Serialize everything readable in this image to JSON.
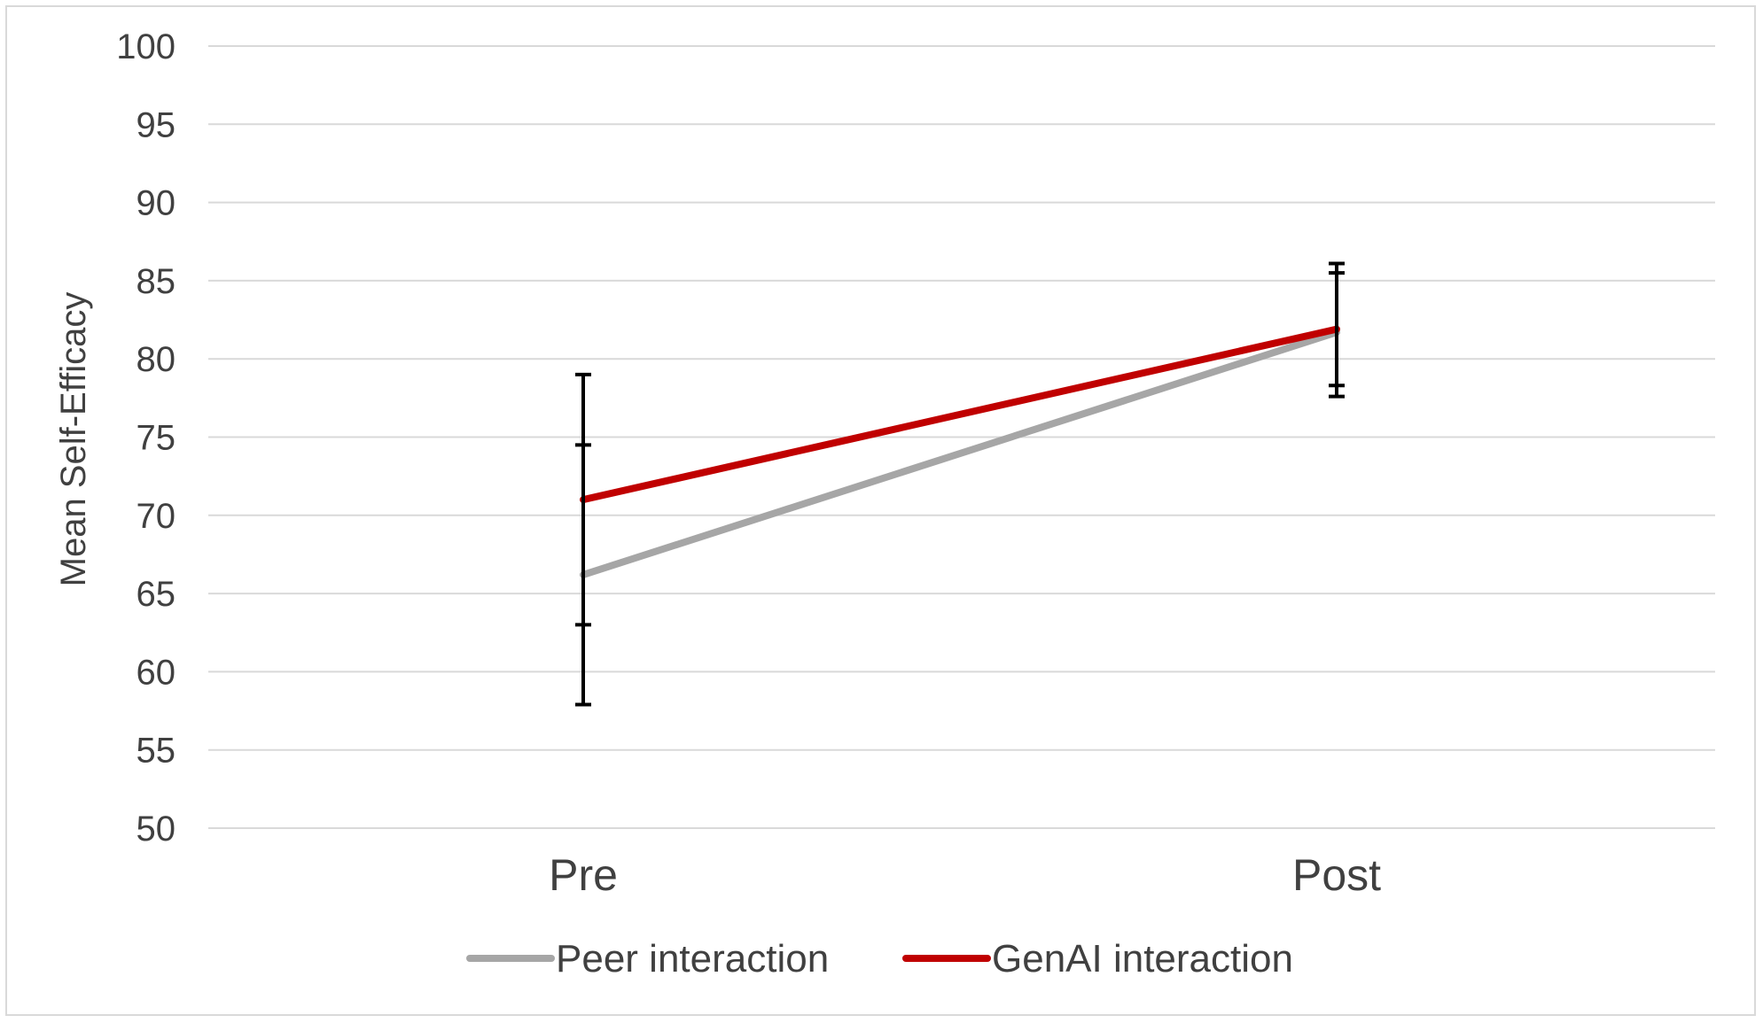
{
  "chart_data": {
    "type": "line",
    "title": "",
    "xlabel": "",
    "ylabel": "Mean Self-Efficacy",
    "categories": [
      "Pre",
      "Post"
    ],
    "ylim": [
      50,
      100
    ],
    "yticks": [
      50,
      55,
      60,
      65,
      70,
      75,
      80,
      85,
      90,
      95,
      100
    ],
    "grid": true,
    "legend_position": "bottom",
    "series": [
      {
        "name": "Peer interaction",
        "color": "#a6a6a6",
        "values": [
          66.2,
          81.7
        ],
        "error_low": [
          57.9,
          77.6
        ],
        "error_high": [
          74.5,
          85.5
        ]
      },
      {
        "name": "GenAI interaction",
        "color": "#c00000",
        "values": [
          71.0,
          81.9
        ],
        "error_low": [
          63.0,
          78.3
        ],
        "error_high": [
          79.0,
          86.1
        ]
      }
    ]
  },
  "colors": {
    "gridline": "#d9d9d9",
    "error_bar": "#000000",
    "text": "#404040",
    "frame": "#d9d9d9"
  }
}
